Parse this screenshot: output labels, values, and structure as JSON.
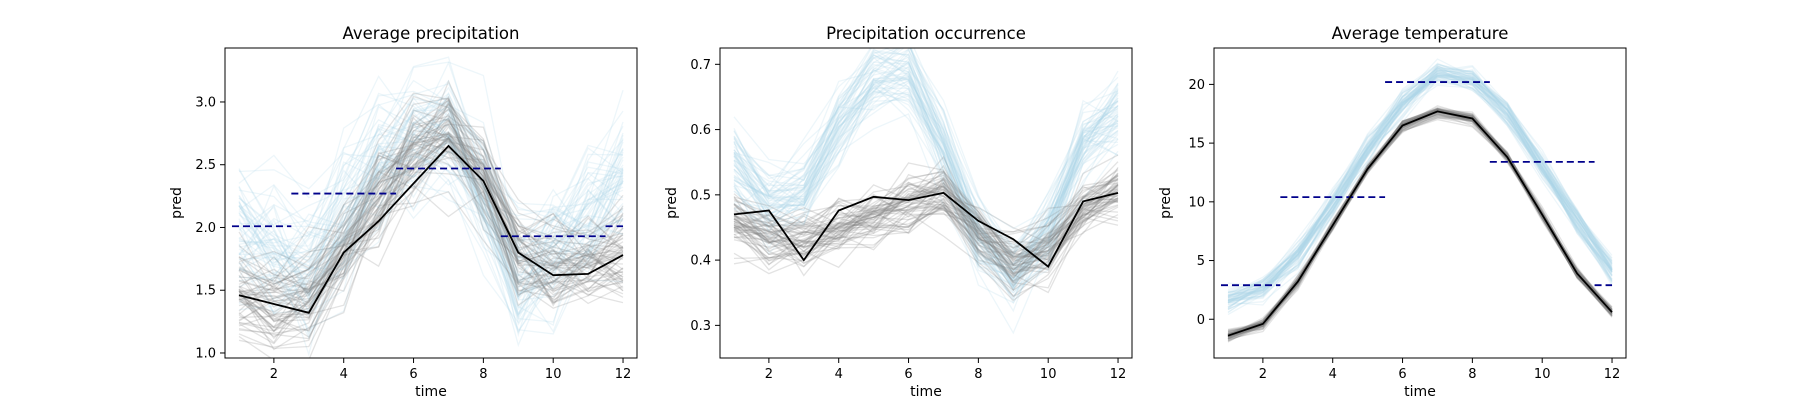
{
  "figure": {
    "colors": {
      "ensemble_a": "#add8e6",
      "ensemble_b": "#808080",
      "observed": "#000000",
      "seasonal_mean": "#00008b"
    }
  },
  "chart_data": [
    {
      "type": "line",
      "title": "Average precipitation",
      "xlabel": "time",
      "ylabel": "pred",
      "xlim": [
        0.6,
        12.4
      ],
      "ylim": [
        0.96,
        3.43
      ],
      "xticks": [
        2,
        4,
        6,
        8,
        10,
        12
      ],
      "yticks": [
        1.0,
        1.5,
        2.0,
        2.5,
        3.0
      ],
      "x": [
        1,
        2,
        3,
        4,
        5,
        6,
        7,
        8,
        9,
        10,
        11,
        12
      ],
      "series": [
        {
          "role": "ensemble_a",
          "values": [
            1.95,
            1.75,
            1.65,
            2.05,
            2.45,
            2.65,
            2.7,
            2.2,
            1.55,
            1.8,
            2.05,
            2.35
          ],
          "spread": 0.3,
          "count": 60
        },
        {
          "role": "ensemble_b",
          "values": [
            1.45,
            1.35,
            1.4,
            1.8,
            2.2,
            2.6,
            2.75,
            2.4,
            1.75,
            1.65,
            1.7,
            1.75
          ],
          "spread": 0.2,
          "count": 60
        },
        {
          "role": "observed",
          "values": [
            1.46,
            1.39,
            1.32,
            1.8,
            2.05,
            2.35,
            2.65,
            2.37,
            1.8,
            1.62,
            1.63,
            1.78
          ]
        }
      ],
      "seasonal_means": [
        {
          "x": [
            0.8,
            2.5
          ],
          "y": 2.01
        },
        {
          "x": [
            2.5,
            5.5
          ],
          "y": 2.27
        },
        {
          "x": [
            5.5,
            8.5
          ],
          "y": 2.47
        },
        {
          "x": [
            8.5,
            11.5
          ],
          "y": 1.93
        },
        {
          "x": [
            11.5,
            12.0
          ],
          "y": 2.01
        }
      ]
    },
    {
      "type": "line",
      "title": "Precipitation occurrence",
      "xlabel": "time",
      "ylabel": "pred",
      "xlim": [
        0.6,
        12.4
      ],
      "ylim": [
        0.25,
        0.725
      ],
      "xticks": [
        2,
        4,
        6,
        8,
        10,
        12
      ],
      "yticks": [
        0.3,
        0.4,
        0.5,
        0.6,
        0.7
      ],
      "x": [
        1,
        2,
        3,
        4,
        5,
        6,
        7,
        8,
        9,
        10,
        11,
        12
      ],
      "series": [
        {
          "role": "ensemble_a",
          "values": [
            0.54,
            0.48,
            0.5,
            0.6,
            0.67,
            0.68,
            0.57,
            0.43,
            0.37,
            0.44,
            0.57,
            0.62
          ],
          "spread": 0.03,
          "count": 60
        },
        {
          "role": "ensemble_b",
          "values": [
            0.46,
            0.44,
            0.43,
            0.45,
            0.47,
            0.49,
            0.5,
            0.44,
            0.4,
            0.42,
            0.48,
            0.51
          ],
          "spread": 0.025,
          "count": 60
        },
        {
          "role": "observed",
          "values": [
            0.47,
            0.476,
            0.4,
            0.476,
            0.497,
            0.492,
            0.503,
            0.46,
            0.432,
            0.39,
            0.49,
            0.503
          ]
        }
      ],
      "seasonal_means": []
    },
    {
      "type": "line",
      "title": "Average temperature",
      "xlabel": "time",
      "ylabel": "pred",
      "xlim": [
        0.6,
        12.4
      ],
      "ylim": [
        -3.3,
        23.1
      ],
      "xticks": [
        2,
        4,
        6,
        8,
        10,
        12
      ],
      "yticks": [
        0,
        5,
        10,
        15,
        20
      ],
      "x": [
        1,
        2,
        3,
        4,
        5,
        6,
        7,
        8,
        9,
        10,
        11,
        12
      ],
      "series": [
        {
          "role": "ensemble_a",
          "values": [
            1.8,
            2.6,
            5.5,
            9.8,
            14.5,
            18.5,
            21,
            20.5,
            17.5,
            13,
            8.5,
            4.2
          ],
          "spread": 0.6,
          "count": 60
        },
        {
          "role": "ensemble_b",
          "values": [
            -1.4,
            -0.4,
            3.2,
            8.0,
            12.8,
            16.5,
            17.7,
            17.1,
            13.8,
            8.9,
            3.9,
            0.6
          ],
          "spread": 0.25,
          "count": 60
        },
        {
          "role": "observed",
          "values": [
            -1.4,
            -0.4,
            3.2,
            8.0,
            12.8,
            16.5,
            17.7,
            17.1,
            13.8,
            8.9,
            3.9,
            0.6
          ]
        }
      ],
      "seasonal_means": [
        {
          "x": [
            0.8,
            2.5
          ],
          "y": 2.9
        },
        {
          "x": [
            2.5,
            5.5
          ],
          "y": 10.4
        },
        {
          "x": [
            5.5,
            8.5
          ],
          "y": 20.2
        },
        {
          "x": [
            8.5,
            11.5
          ],
          "y": 13.4
        },
        {
          "x": [
            11.5,
            12.0
          ],
          "y": 2.9
        }
      ]
    }
  ]
}
